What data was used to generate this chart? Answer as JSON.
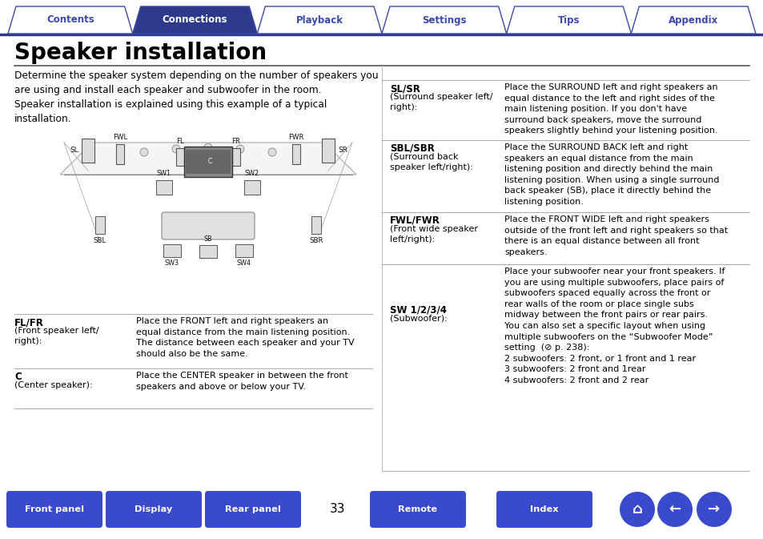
{
  "tab_labels": [
    "Contents",
    "Connections",
    "Playback",
    "Settings",
    "Tips",
    "Appendix"
  ],
  "active_tab": 1,
  "tab_color_active": "#2d3a8c",
  "tab_color_inactive": "#ffffff",
  "tab_text_color_active": "#ffffff",
  "tab_text_color_inactive": "#3a4aaa",
  "tab_border_color": "#3a4aaa",
  "title": "Speaker installation",
  "body_text": "Determine the speaker system depending on the number of speakers you\nare using and install each speaker and subwoofer in the room.\nSpeaker installation is explained using this example of a typical\ninstallation.",
  "table_left": [
    {
      "label": "FL/FR",
      "sub": "(Front speaker left/\nright):"
    },
    {
      "label": "C",
      "sub": "(Center speaker):"
    }
  ],
  "table_right": [
    "Place the FRONT left and right speakers an\nequal distance from the main listening position.\nThe distance between each speaker and your TV\nshould also be the same.",
    "Place the CENTER speaker in between the front\nspeakers and above or below your TV."
  ],
  "table_left2": [
    {
      "label": "SL/SR",
      "sub": "(Surround speaker left/\nright):"
    },
    {
      "label": "SBL/SBR",
      "sub": "(Surround back\nspeaker left/right):"
    },
    {
      "label": "FWL/FWR",
      "sub": "(Front wide speaker\nleft/right):"
    },
    {
      "label": "SW 1/2/3/4",
      "sub": "(Subwoofer):"
    }
  ],
  "table_right2": [
    "Place the SURROUND left and right speakers an\nequal distance to the left and right sides of the\nmain listening position. If you don't have\nsurround back speakers, move the surround\nspeakers slightly behind your listening position.",
    "Place the SURROUND BACK left and right\nspeakers an equal distance from the main\nlistening position and directly behind the main\nlistening position. When using a single surround\nback speaker (SB), place it directly behind the\nlistening position.",
    "Place the FRONT WIDE left and right speakers\noutside of the front left and right speakers so that\nthere is an equal distance between all front\nspeakers.",
    "Place your subwoofer near your front speakers. If\nyou are using multiple subwoofers, place pairs of\nsubwoofers spaced equally across the front or\nrear walls of the room or place single subs\nmidway between the front pairs or rear pairs.\nYou can also set a specific layout when using\nmultiple subwoofers on the “Subwoofer Mode”\nsetting  (⊘ p. 238):\n2 subwoofers: 2 front, or 1 front and 1 rear\n3 subwoofers: 2 front and 1rear\n4 subwoofers: 2 front and 2 rear"
  ],
  "bottom_buttons": [
    "Front panel",
    "Display",
    "Rear panel",
    "Remote",
    "Index"
  ],
  "bottom_button_color": "#3a4acc",
  "bottom_button_text_color": "#ffffff",
  "page_number": "33",
  "bg_color": "#ffffff",
  "text_color": "#000000",
  "tab_line_color": "#2d3a8c"
}
